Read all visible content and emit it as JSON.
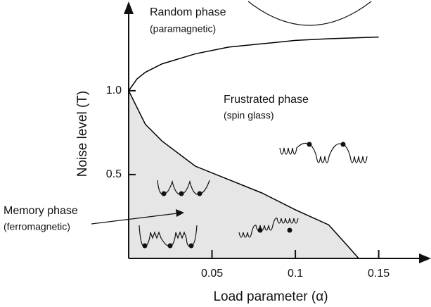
{
  "chart_data": {
    "type": "line",
    "xlabel": "Load parameter (α)",
    "ylabel": "Noise level (T)",
    "xlim": [
      0,
      0.178
    ],
    "ylim": [
      0,
      1.52
    ],
    "xticks": [
      0.05,
      0.1,
      0.15
    ],
    "yticks": [
      0.5,
      {
        "value": 1,
        "label": "1.0"
      }
    ],
    "annotations": [
      "Random phase",
      "(paramagnetic)",
      "Frustrated phase",
      "(spin glass)",
      "Memory phase",
      "(ferromagnetic)"
    ],
    "series": [
      {
        "color": "#000000",
        "x": [
          0,
          0.005,
          0.01,
          0.02,
          0.04,
          0.06,
          0.08,
          0.1,
          0.12,
          0.15
        ],
        "values": [
          1.0,
          1.07,
          1.11,
          1.16,
          1.22,
          1.26,
          1.28,
          1.3,
          1.31,
          1.32
        ]
      },
      {
        "color": "#000000",
        "fill": "#e6e6e6",
        "x": [
          0,
          0.01,
          0.02,
          0.04,
          0.06,
          0.08,
          0.1,
          0.12,
          0.13,
          0.138
        ],
        "values": [
          1.0,
          0.8,
          0.7,
          0.55,
          0.47,
          0.39,
          0.29,
          0.2,
          0.09,
          0
        ]
      }
    ]
  }
}
